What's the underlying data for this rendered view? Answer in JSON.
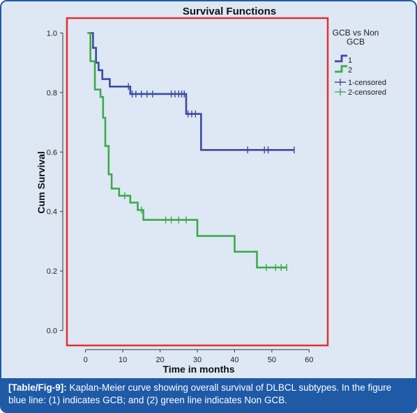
{
  "chart_data": {
    "type": "line",
    "title": "Survival Functions",
    "xlabel": "Time in months",
    "ylabel": "Cum Survival",
    "xlim": [
      -5,
      65
    ],
    "ylim": [
      -0.05,
      1.05
    ],
    "xticks": [
      0,
      10,
      20,
      30,
      40,
      50,
      60
    ],
    "yticks": [
      0.0,
      0.2,
      0.4,
      0.6,
      0.8,
      1.0
    ],
    "ytick_labels": [
      "0.0",
      "0.2",
      "0.4",
      "0.6",
      "0.8",
      "1.0"
    ],
    "legend": {
      "title": "GCB vs Non GCB",
      "title_lines": [
        "GCB vs Non",
        "GCB"
      ],
      "entries": [
        "1",
        "2",
        "1-censored",
        "2-censored"
      ],
      "position": "top-right"
    },
    "series": [
      {
        "name": "1",
        "color": "#3a4aa0",
        "steps": [
          [
            0.5,
            1.0
          ],
          [
            2,
            0.95
          ],
          [
            2.8,
            0.9
          ],
          [
            3.5,
            0.875
          ],
          [
            4.5,
            0.845
          ],
          [
            6.5,
            0.82
          ],
          [
            12,
            0.795
          ],
          [
            27,
            0.728
          ],
          [
            31,
            0.607
          ],
          [
            56,
            0.607
          ]
        ],
        "censored": [
          [
            11.5,
            0.82
          ],
          [
            12.5,
            0.795
          ],
          [
            13.5,
            0.795
          ],
          [
            15,
            0.795
          ],
          [
            16.5,
            0.795
          ],
          [
            18,
            0.795
          ],
          [
            23,
            0.795
          ],
          [
            24,
            0.795
          ],
          [
            25,
            0.795
          ],
          [
            25.8,
            0.795
          ],
          [
            26.5,
            0.795
          ],
          [
            27.5,
            0.728
          ],
          [
            28.5,
            0.728
          ],
          [
            29.5,
            0.728
          ],
          [
            43.5,
            0.607
          ],
          [
            48,
            0.607
          ],
          [
            49,
            0.607
          ],
          [
            56,
            0.607
          ]
        ]
      },
      {
        "name": "2",
        "color": "#3daa4a",
        "steps": [
          [
            0.5,
            1.0
          ],
          [
            1.3,
            0.905
          ],
          [
            2.5,
            0.81
          ],
          [
            4,
            0.785
          ],
          [
            4.7,
            0.715
          ],
          [
            5.3,
            0.62
          ],
          [
            6.2,
            0.525
          ],
          [
            7,
            0.477
          ],
          [
            9,
            0.453
          ],
          [
            12,
            0.43
          ],
          [
            14,
            0.405
          ],
          [
            15.5,
            0.372
          ],
          [
            30,
            0.318
          ],
          [
            40,
            0.265
          ],
          [
            46,
            0.212
          ],
          [
            54,
            0.212
          ]
        ],
        "censored": [
          [
            10.5,
            0.453
          ],
          [
            15,
            0.405
          ],
          [
            21.5,
            0.372
          ],
          [
            23,
            0.372
          ],
          [
            25,
            0.372
          ],
          [
            27,
            0.372
          ],
          [
            48.5,
            0.212
          ],
          [
            51,
            0.212
          ],
          [
            52.5,
            0.212
          ],
          [
            54,
            0.212
          ]
        ]
      }
    ]
  },
  "caption": {
    "tag": "[Table/Fig-9]:",
    "text": " Kaplan-Meier curve showing overall survival of DLBCL subtypes. In the figure blue line: (1) indicates GCB; and (2) green line indicates Non GCB."
  }
}
